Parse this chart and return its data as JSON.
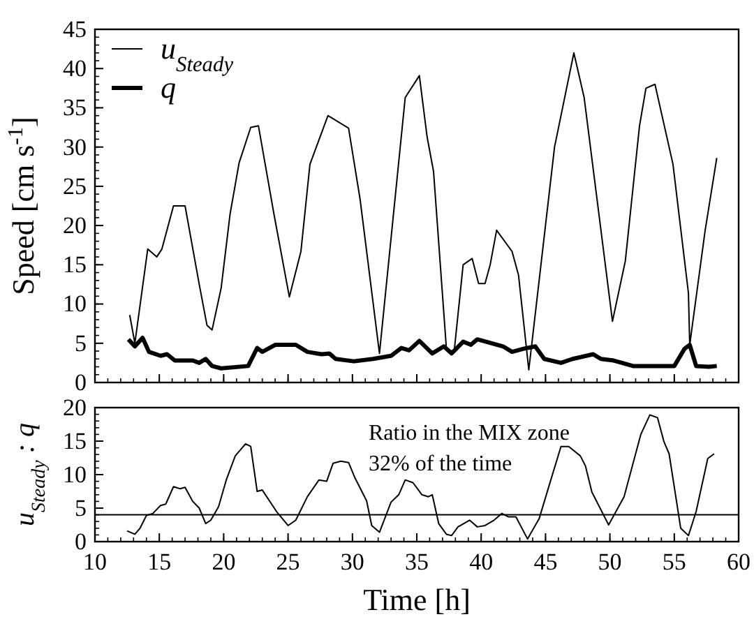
{
  "chart_data": [
    {
      "type": "line",
      "ylabel": "Speed [cm s$^{-1}$]",
      "xlim": [
        10,
        60
      ],
      "xticks": [
        10,
        15,
        20,
        25,
        30,
        35,
        40,
        45,
        50,
        55,
        60
      ],
      "ylim": [
        0,
        45
      ],
      "yticks": [
        0,
        5,
        10,
        15,
        20,
        25,
        30,
        35,
        40,
        45
      ],
      "tick_labels": "y",
      "legend": "top left",
      "grid": false,
      "series": [
        {
          "name": "u$_{Steady}$",
          "color": "#000000",
          "x": [
            12.7,
            13.1,
            14.1,
            14.8,
            15.2,
            16.1,
            17,
            18.1,
            18.7,
            19.1,
            19.8,
            20.5,
            21.2,
            22.1,
            22.7,
            23.9,
            25.1,
            26,
            26.7,
            28.1,
            29.7,
            30.6,
            32.1,
            34.1,
            35.2,
            35.8,
            36.3,
            37.3,
            37.9,
            38.6,
            39.3,
            39.8,
            40.3,
            40.7,
            41.2,
            42.4,
            42.9,
            43.7,
            45.7,
            47.2,
            48,
            50.2,
            51.2,
            52.3,
            52.8,
            53.5,
            54.9,
            56.1,
            56.2,
            57.4,
            58.3
          ],
          "values": [
            8.6,
            5,
            17,
            16,
            17,
            22.5,
            22.5,
            12.5,
            7.3,
            6.7,
            12,
            21.5,
            28,
            32.5,
            32.7,
            21.5,
            10.9,
            16.7,
            27.8,
            34,
            32.4,
            23.3,
            3.7,
            36.3,
            39.1,
            31.3,
            26.9,
            4.3,
            3.9,
            15,
            15.8,
            12.6,
            12.6,
            15,
            19.4,
            16.7,
            13.7,
            1.6,
            30,
            42,
            36.3,
            7.8,
            15.5,
            32.7,
            37.5,
            38,
            27.8,
            11.4,
            4.8,
            19.4,
            28.6
          ]
        },
        {
          "name": "q",
          "color": "#000000",
          "x": [
            12.6,
            13.1,
            13.7,
            14.2,
            15.1,
            15.6,
            16.2,
            17.6,
            18.1,
            18.6,
            19.1,
            19.8,
            21.9,
            22.6,
            23,
            24,
            25.6,
            26.5,
            27.6,
            28.2,
            28.7,
            30.1,
            31.6,
            33,
            33.8,
            34.4,
            35.2,
            36.2,
            37.1,
            37.7,
            38.6,
            39.2,
            39.7,
            41.7,
            42.4,
            43.3,
            44.2,
            44.9,
            46.2,
            47.1,
            48.7,
            49.3,
            50.3,
            51.8,
            55,
            55.8,
            56.2,
            56.7,
            57.7,
            58.3
          ],
          "values": [
            5.5,
            4.6,
            5.7,
            3.9,
            3.4,
            3.6,
            2.8,
            2.8,
            2.5,
            3,
            2.1,
            1.8,
            2.1,
            4.4,
            3.9,
            4.8,
            4.8,
            3.9,
            3.6,
            3.7,
            3,
            2.7,
            3,
            3.4,
            4.4,
            4.1,
            5.3,
            3.7,
            4.6,
            3.7,
            5.2,
            4.8,
            5.5,
            4.6,
            3.9,
            4.3,
            4.6,
            3,
            2.5,
            3,
            3.6,
            3,
            2.8,
            2.1,
            2.1,
            4.3,
            4.8,
            2.1,
            2,
            2.1
          ]
        }
      ]
    },
    {
      "type": "line",
      "xlabel": "Time [h]",
      "ylabel": "u$_{Steady}$ : q",
      "xlim": [
        10,
        60
      ],
      "xticks": [
        10,
        15,
        20,
        25,
        30,
        35,
        40,
        45,
        50,
        55,
        60
      ],
      "ylim": [
        0,
        20
      ],
      "yticks": [
        0,
        5,
        10,
        15,
        20
      ],
      "grid": false,
      "ref_lines": [
        {
          "axis": "y",
          "value": 4
        }
      ],
      "annotations": [
        "Ratio in the MIX zone",
        "32% of the time"
      ],
      "series": [
        {
          "color": "#000000",
          "x": [
            12.5,
            13.1,
            13.5,
            14,
            14.5,
            15.1,
            15.5,
            16.1,
            16.6,
            17,
            17.6,
            18.1,
            18.6,
            19,
            19.6,
            20.2,
            20.9,
            21.7,
            22.1,
            22.6,
            23,
            24.1,
            25,
            25.6,
            26.5,
            27.4,
            28,
            28.5,
            29.1,
            29.7,
            30.2,
            31.1,
            31.5,
            32.1,
            33,
            33.6,
            34.1,
            34.7,
            35.4,
            35.9,
            36.2,
            36.7,
            37.3,
            37.7,
            38.2,
            39.1,
            39.7,
            40.3,
            41,
            41.6,
            42.1,
            42.7,
            43.6,
            44.5,
            45.3,
            46.2,
            46.8,
            47.7,
            48.1,
            48.6,
            49.9,
            51.1,
            51.8,
            52.4,
            53.1,
            53.7,
            54.2,
            54.6,
            55.5,
            56.1,
            56.7,
            57.6,
            58.1
          ],
          "values": [
            1.6,
            1.1,
            2,
            3.9,
            4.2,
            5.4,
            5.6,
            8.2,
            7.9,
            8.1,
            6,
            5,
            2.7,
            3.2,
            5.2,
            9.2,
            12.8,
            14.6,
            14.2,
            7.5,
            7.7,
            4.5,
            2.4,
            3.2,
            6.7,
            9.2,
            9,
            11.7,
            12,
            11.8,
            9.5,
            6.1,
            2.4,
            1.4,
            5.9,
            7,
            9.2,
            8.8,
            7,
            6.7,
            7,
            2.7,
            1.1,
            0.9,
            2.2,
            3.2,
            2.2,
            2.4,
            3.2,
            4.2,
            3.7,
            3.7,
            0.4,
            3.4,
            8.5,
            14.2,
            14.2,
            12.8,
            11.3,
            7.4,
            2.5,
            6.7,
            11.7,
            16,
            18.9,
            18.5,
            14.9,
            13.1,
            2,
            0.9,
            4.5,
            12.4,
            13.1
          ]
        }
      ]
    }
  ]
}
